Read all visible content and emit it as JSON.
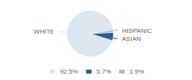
{
  "chart_data": {
    "type": "pie",
    "categories": [
      "92.5%",
      "5.7%",
      "1.9%"
    ],
    "values": [
      92.5,
      5.7,
      1.9
    ],
    "annotations": [
      "WHITE",
      "ASIAN",
      "HISPANIC"
    ],
    "colors": [
      "#dce6f0",
      "#2e5f8a",
      "#a8bfd4"
    ],
    "legend": "bottom"
  }
}
